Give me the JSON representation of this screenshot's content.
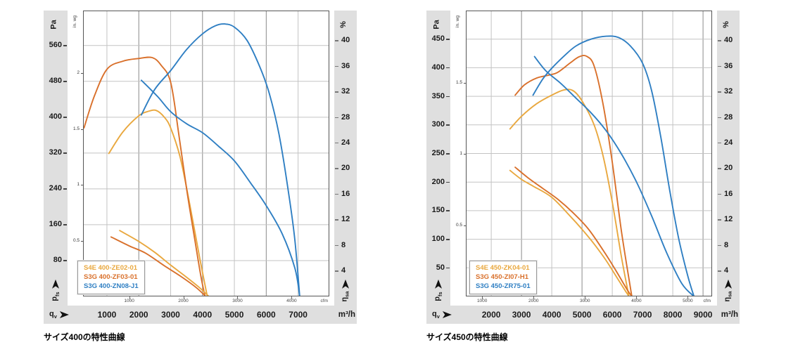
{
  "units": {
    "pressure": "Pa",
    "pressure_imperial": "in. wg",
    "efficiency": "%",
    "flow_metric": "m³/h",
    "flow_imperial": "cfm",
    "flow_symbol": {
      "base": "q",
      "sub": "v"
    },
    "pressure_symbol": {
      "base": "p",
      "sub": "fs"
    },
    "efficiency_symbol": {
      "base": "η",
      "sub": "sa"
    }
  },
  "colors": {
    "yellow": "#E9A83F",
    "orange": "#D9702B",
    "blue": "#2F7FC3",
    "band": "#DFDFDF",
    "grid": "#C3C3C3",
    "grid_dark": "#8A8A8A",
    "frame": "#555555"
  },
  "chart_data": [
    {
      "type": "line",
      "caption": "サイズ400の特性曲線",
      "x_axis": {
        "label": "m³/h",
        "domain": [
          250,
          7980
        ],
        "ticks": [
          1000,
          2000,
          3000,
          4000,
          5000,
          6000,
          7000
        ],
        "dark_gridlines": [
          2000,
          4000,
          6000
        ]
      },
      "x_axis_cfm": {
        "label": "cfm",
        "ticks": [
          1000,
          2000,
          3000,
          4000
        ]
      },
      "y_axis_pa": {
        "label": "Pa",
        "max": 638,
        "ticks": [
          560,
          480,
          400,
          320,
          240,
          160,
          80
        ]
      },
      "y_axis_inwg": {
        "label": "in. wg",
        "ticks": [
          2,
          1.5,
          1,
          0.5
        ]
      },
      "y_axis_pct": {
        "label": "%",
        "max": 44.7,
        "ticks": [
          40,
          36,
          32,
          28,
          24,
          20,
          16,
          12,
          8,
          4
        ]
      },
      "legend": [
        {
          "label": "S4E 400-ZE02-01",
          "color": "yellow"
        },
        {
          "label": "S3G 400-ZF03-01",
          "color": "orange"
        },
        {
          "label": "S3G 400-ZN08-J1",
          "color": "blue"
        }
      ],
      "series": [
        {
          "name": "S4E 400-ZE02-01 pressure",
          "color": "yellow",
          "axis": "pa",
          "points": [
            [
              1060,
              319
            ],
            [
              1500,
              367
            ],
            [
              2000,
              403
            ],
            [
              2300,
              413
            ],
            [
              2550,
              415
            ],
            [
              2800,
              400
            ],
            [
              3000,
              376
            ],
            [
              3300,
              310
            ],
            [
              3600,
              205
            ],
            [
              3900,
              90
            ],
            [
              4150,
              0
            ]
          ]
        },
        {
          "name": "S3G 400-ZF03-01 pressure",
          "color": "orange",
          "axis": "pa",
          "points": [
            [
              280,
              376
            ],
            [
              600,
              446
            ],
            [
              1000,
              507
            ],
            [
              1500,
              525
            ],
            [
              2000,
              531
            ],
            [
              2420,
              533
            ],
            [
              2700,
              516
            ],
            [
              3000,
              478
            ],
            [
              3250,
              365
            ],
            [
              3500,
              240
            ],
            [
              3750,
              130
            ],
            [
              3950,
              45
            ],
            [
              4080,
              0
            ]
          ]
        },
        {
          "name": "S3G 400-ZN08-J1 pressure",
          "color": "blue",
          "axis": "pa",
          "points": [
            [
              2080,
              405
            ],
            [
              2500,
              462
            ],
            [
              3000,
              504
            ],
            [
              3500,
              551
            ],
            [
              4000,
              586
            ],
            [
              4400,
              604
            ],
            [
              4700,
              608
            ],
            [
              5000,
              601
            ],
            [
              5400,
              571
            ],
            [
              5800,
              512
            ],
            [
              6100,
              452
            ],
            [
              6400,
              362
            ],
            [
              6700,
              232
            ],
            [
              6900,
              125
            ],
            [
              7050,
              0
            ]
          ]
        },
        {
          "name": "S4E 400-ZE02-01 efficiency",
          "color": "yellow",
          "axis": "pct",
          "points": [
            [
              1400,
              10.3
            ],
            [
              2000,
              8.6
            ],
            [
              2500,
              6.9
            ],
            [
              3000,
              4.9
            ],
            [
              3500,
              3.0
            ],
            [
              3900,
              1.4
            ],
            [
              4200,
              0
            ]
          ]
        },
        {
          "name": "S3G 400-ZF03-01 efficiency",
          "color": "orange",
          "axis": "pct",
          "points": [
            [
              1130,
              9.3
            ],
            [
              1700,
              7.9
            ],
            [
              2200,
              6.8
            ],
            [
              2800,
              4.8
            ],
            [
              3300,
              3.2
            ],
            [
              3800,
              1.4
            ],
            [
              4100,
              0
            ]
          ]
        },
        {
          "name": "S3G 400-ZN08-J1 efficiency",
          "color": "blue",
          "axis": "pct",
          "points": [
            [
              2080,
              33.8
            ],
            [
              2600,
              31.2
            ],
            [
              3000,
              28.9
            ],
            [
              3500,
              27.0
            ],
            [
              4000,
              25.6
            ],
            [
              4500,
              23.5
            ],
            [
              5000,
              21.2
            ],
            [
              5500,
              17.8
            ],
            [
              6000,
              14.2
            ],
            [
              6500,
              9.8
            ],
            [
              6900,
              4.4
            ],
            [
              7050,
              0
            ]
          ]
        }
      ]
    },
    {
      "type": "line",
      "caption": "サイズ450の特性曲線",
      "x_axis": {
        "label": "m³/h",
        "domain": [
          1160,
          9300
        ],
        "ticks": [
          2000,
          3000,
          4000,
          5000,
          6000,
          7000,
          8000,
          9000
        ],
        "dark_gridlines": [
          3000,
          5000,
          7000,
          9000
        ]
      },
      "x_axis_cfm": {
        "label": "cfm",
        "ticks": [
          1000,
          2000,
          3000,
          4000,
          5000
        ]
      },
      "y_axis_pa": {
        "label": "Pa",
        "max": 500,
        "ticks": [
          450,
          400,
          350,
          300,
          250,
          200,
          150,
          100,
          50
        ]
      },
      "y_axis_inwg": {
        "label": "in. wg",
        "ticks": [
          1.5,
          1,
          0.5
        ]
      },
      "y_axis_pct": {
        "label": "%",
        "max": 44.7,
        "ticks": [
          40,
          36,
          32,
          28,
          24,
          20,
          16,
          12,
          8,
          4
        ]
      },
      "legend": [
        {
          "label": "S4E 450-ZK04-01",
          "color": "yellow"
        },
        {
          "label": "S3G 450-ZI07-H1",
          "color": "orange"
        },
        {
          "label": "S3G 450-ZR75-01",
          "color": "blue"
        }
      ],
      "series": [
        {
          "name": "S4E 450-ZK04-01 pressure",
          "color": "yellow",
          "axis": "pa",
          "points": [
            [
              2620,
              293
            ],
            [
              3000,
              315
            ],
            [
              3500,
              337
            ],
            [
              4000,
              352
            ],
            [
              4400,
              361
            ],
            [
              4700,
              360
            ],
            [
              5000,
              342
            ],
            [
              5400,
              300
            ],
            [
              5700,
              245
            ],
            [
              6000,
              165
            ],
            [
              6300,
              70
            ],
            [
              6550,
              0
            ]
          ]
        },
        {
          "name": "S3G 450-ZI07-H1 pressure",
          "color": "orange",
          "axis": "pa",
          "points": [
            [
              2790,
              352
            ],
            [
              3100,
              370
            ],
            [
              3500,
              382
            ],
            [
              3900,
              387
            ],
            [
              4200,
              392
            ],
            [
              4600,
              408
            ],
            [
              4900,
              419
            ],
            [
              5150,
              420
            ],
            [
              5400,
              403
            ],
            [
              5700,
              335
            ],
            [
              6000,
              235
            ],
            [
              6300,
              115
            ],
            [
              6600,
              15
            ],
            [
              6650,
              0
            ]
          ]
        },
        {
          "name": "S3G 450-ZR75-01 pressure",
          "color": "blue",
          "axis": "pa",
          "points": [
            [
              3380,
              352
            ],
            [
              3700,
              380
            ],
            [
              4000,
              399
            ],
            [
              4400,
              420
            ],
            [
              4800,
              438
            ],
            [
              5300,
              450
            ],
            [
              5800,
              455
            ],
            [
              6200,
              453
            ],
            [
              6600,
              438
            ],
            [
              7000,
              408
            ],
            [
              7300,
              360
            ],
            [
              7600,
              280
            ],
            [
              7900,
              185
            ],
            [
              8200,
              100
            ],
            [
              8500,
              35
            ],
            [
              8700,
              0
            ]
          ]
        },
        {
          "name": "S4E 450-ZK04-01 efficiency",
          "color": "yellow",
          "axis": "pct",
          "points": [
            [
              2620,
              19.7
            ],
            [
              3000,
              18.3
            ],
            [
              3400,
              17.2
            ],
            [
              4000,
              15.5
            ],
            [
              4600,
              12.6
            ],
            [
              5000,
              10.5
            ],
            [
              5400,
              8.2
            ],
            [
              5800,
              5.6
            ],
            [
              6200,
              2.6
            ],
            [
              6550,
              0
            ]
          ]
        },
        {
          "name": "S3G 450-ZI07-H1 efficiency",
          "color": "orange",
          "axis": "pct",
          "points": [
            [
              2790,
              20.2
            ],
            [
              3200,
              18.6
            ],
            [
              3700,
              16.9
            ],
            [
              4200,
              15.2
            ],
            [
              4700,
              13.1
            ],
            [
              5200,
              10.6
            ],
            [
              5700,
              7.2
            ],
            [
              6100,
              4.2
            ],
            [
              6500,
              1.0
            ],
            [
              6650,
              0
            ]
          ]
        },
        {
          "name": "S3G 450-ZR75-01 efficiency",
          "color": "blue",
          "axis": "pct",
          "points": [
            [
              3430,
              37.5
            ],
            [
              3800,
              35.3
            ],
            [
              4300,
              33.3
            ],
            [
              4800,
              31.0
            ],
            [
              5300,
              28.7
            ],
            [
              5800,
              25.9
            ],
            [
              6300,
              22.3
            ],
            [
              6800,
              17.9
            ],
            [
              7300,
              12.6
            ],
            [
              7800,
              6.8
            ],
            [
              8300,
              2.0
            ],
            [
              8700,
              0
            ]
          ]
        }
      ]
    }
  ]
}
